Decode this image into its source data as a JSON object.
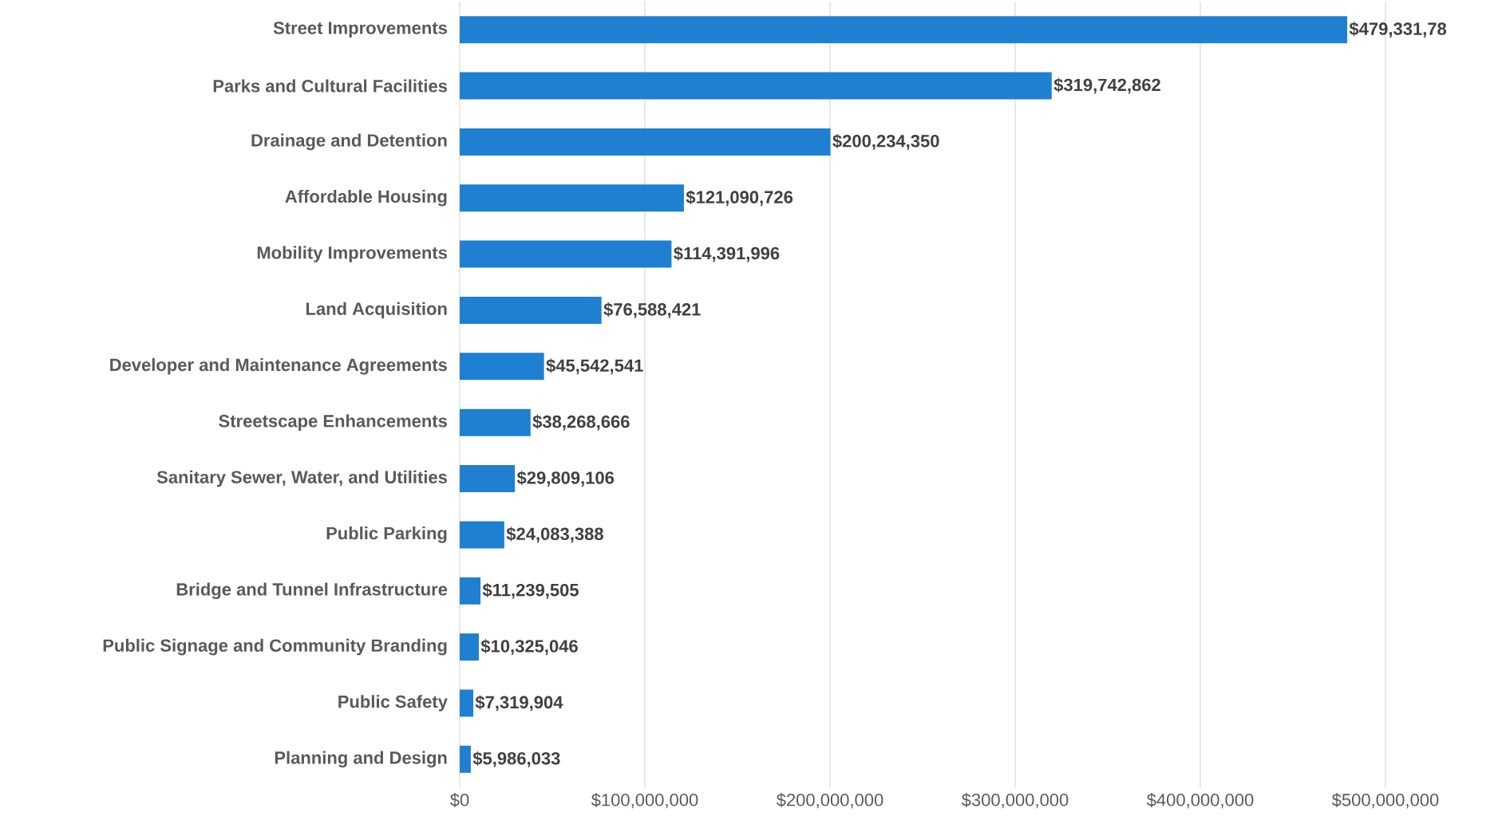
{
  "chart_data": {
    "type": "bar",
    "orientation": "horizontal",
    "categories": [
      "Street Improvements",
      "Parks and Cultural Facilities",
      "Drainage and Detention",
      "Affordable Housing",
      "Mobility Improvements",
      "Land Acquisition",
      "Developer and Maintenance Agreements",
      "Streetscape Enhancements",
      "Sanitary Sewer, Water, and Utilities",
      "Public Parking",
      "Bridge and Tunnel Infrastructure",
      "Public Signage and Community Branding",
      "Public Safety",
      "Planning and Design"
    ],
    "values": [
      479331780,
      319742862,
      200234350,
      121090726,
      114391996,
      76588421,
      45542541,
      38268666,
      29809106,
      24083388,
      11239505,
      10325046,
      7319904,
      5986033
    ],
    "value_labels": [
      "$479,331,78",
      "$319,742,862",
      "$200,234,350",
      "$121,090,726",
      "$114,391,996",
      "$76,588,421",
      "$45,542,541",
      "$38,268,666",
      "$29,809,106",
      "$24,083,388",
      "$11,239,505",
      "$10,325,046",
      "$7,319,904",
      "$5,986,033"
    ],
    "color": "#1f7fd1",
    "xlim": [
      0,
      500000000
    ],
    "xticks": [
      {
        "value": 0,
        "label": "$0"
      },
      {
        "value": 100000000,
        "label": "$100,000,000"
      },
      {
        "value": 200000000,
        "label": "$200,000,000"
      },
      {
        "value": 300000000,
        "label": "$300,000,000"
      },
      {
        "value": 400000000,
        "label": "$400,000,000"
      },
      {
        "value": 500000000,
        "label": "$500,000,000"
      }
    ],
    "grid": "x"
  }
}
